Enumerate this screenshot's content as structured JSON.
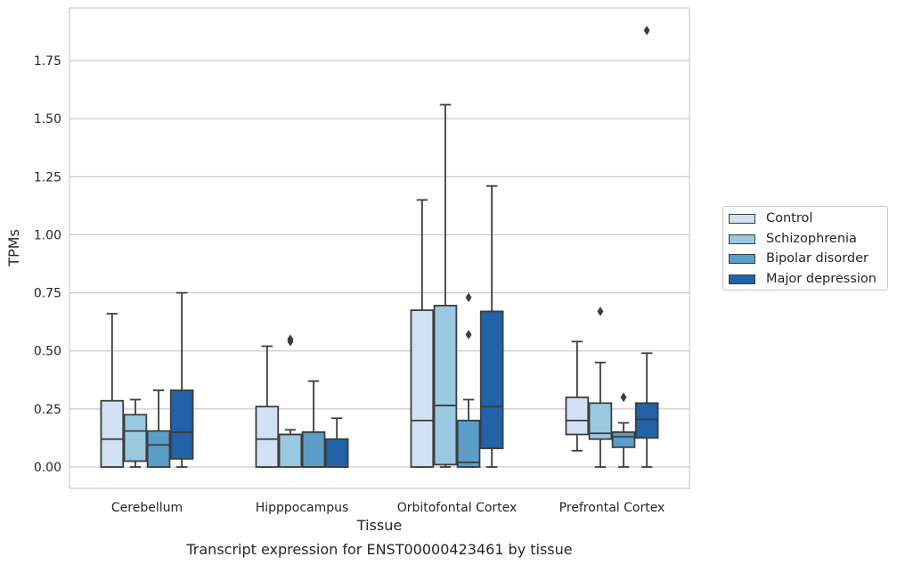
{
  "chart_data": {
    "type": "box",
    "title": "",
    "caption": "Transcript expression for ENST00000423461 by tissue",
    "xlabel": "Tissue",
    "ylabel": "TPMs",
    "ylim": [
      -0.09,
      1.97
    ],
    "yticks": [
      "0.00",
      "0.25",
      "0.50",
      "0.75",
      "1.00",
      "1.25",
      "1.50",
      "1.75"
    ],
    "ytick_values": [
      0,
      0.25,
      0.5,
      0.75,
      1.0,
      1.25,
      1.5,
      1.75
    ],
    "grid": "horizontal",
    "legend_placement": "right",
    "categories": [
      "Cerebellum",
      "Hipppocampus",
      "Orbitofontal Cortex",
      "Prefrontal Cortex"
    ],
    "series": [
      {
        "name": "Control",
        "color": "#cfe1f2",
        "boxes": [
          {
            "whislo": 0.0,
            "q1": 0.0,
            "med": 0.12,
            "q3": 0.285,
            "whishi": 0.66,
            "fliers": []
          },
          {
            "whislo": 0.0,
            "q1": 0.0,
            "med": 0.12,
            "q3": 0.26,
            "whishi": 0.52,
            "fliers": []
          },
          {
            "whislo": 0.0,
            "q1": 0.0,
            "med": 0.2,
            "q3": 0.675,
            "whishi": 1.15,
            "fliers": []
          },
          {
            "whislo": 0.07,
            "q1": 0.14,
            "med": 0.2,
            "q3": 0.3,
            "whishi": 0.54,
            "fliers": []
          }
        ]
      },
      {
        "name": "Schizophrenia",
        "color": "#9ac8e0",
        "boxes": [
          {
            "whislo": 0.0,
            "q1": 0.025,
            "med": 0.155,
            "q3": 0.225,
            "whishi": 0.29,
            "fliers": []
          },
          {
            "whislo": 0.0,
            "q1": 0.0,
            "med": 0.14,
            "q3": 0.14,
            "whishi": 0.16,
            "fliers": [
              0.54,
              0.55
            ]
          },
          {
            "whislo": 0.0,
            "q1": 0.01,
            "med": 0.265,
            "q3": 0.695,
            "whishi": 1.56,
            "fliers": []
          },
          {
            "whislo": 0.0,
            "q1": 0.12,
            "med": 0.145,
            "q3": 0.275,
            "whishi": 0.45,
            "fliers": [
              0.67
            ]
          }
        ]
      },
      {
        "name": "Bipolar disorder",
        "color": "#5a9ec9",
        "boxes": [
          {
            "whislo": 0.0,
            "q1": 0.0,
            "med": 0.095,
            "q3": 0.155,
            "whishi": 0.33,
            "fliers": []
          },
          {
            "whislo": 0.0,
            "q1": 0.0,
            "med": 0.0,
            "q3": 0.15,
            "whishi": 0.37,
            "fliers": []
          },
          {
            "whislo": 0.0,
            "q1": 0.0,
            "med": 0.02,
            "q3": 0.2,
            "whishi": 0.29,
            "fliers": [
              0.57,
              0.73
            ]
          },
          {
            "whislo": 0.0,
            "q1": 0.085,
            "med": 0.13,
            "q3": 0.15,
            "whishi": 0.19,
            "fliers": [
              0.3
            ]
          }
        ]
      },
      {
        "name": "Major depression",
        "color": "#2162a8",
        "boxes": [
          {
            "whislo": 0.0,
            "q1": 0.035,
            "med": 0.15,
            "q3": 0.33,
            "whishi": 0.75,
            "fliers": []
          },
          {
            "whislo": 0.0,
            "q1": 0.0,
            "med": 0.0,
            "q3": 0.12,
            "whishi": 0.21,
            "fliers": []
          },
          {
            "whislo": 0.0,
            "q1": 0.08,
            "med": 0.26,
            "q3": 0.67,
            "whishi": 1.21,
            "fliers": []
          },
          {
            "whislo": 0.0,
            "q1": 0.125,
            "med": 0.205,
            "q3": 0.275,
            "whishi": 0.49,
            "fliers": [
              1.88
            ]
          }
        ]
      }
    ]
  }
}
